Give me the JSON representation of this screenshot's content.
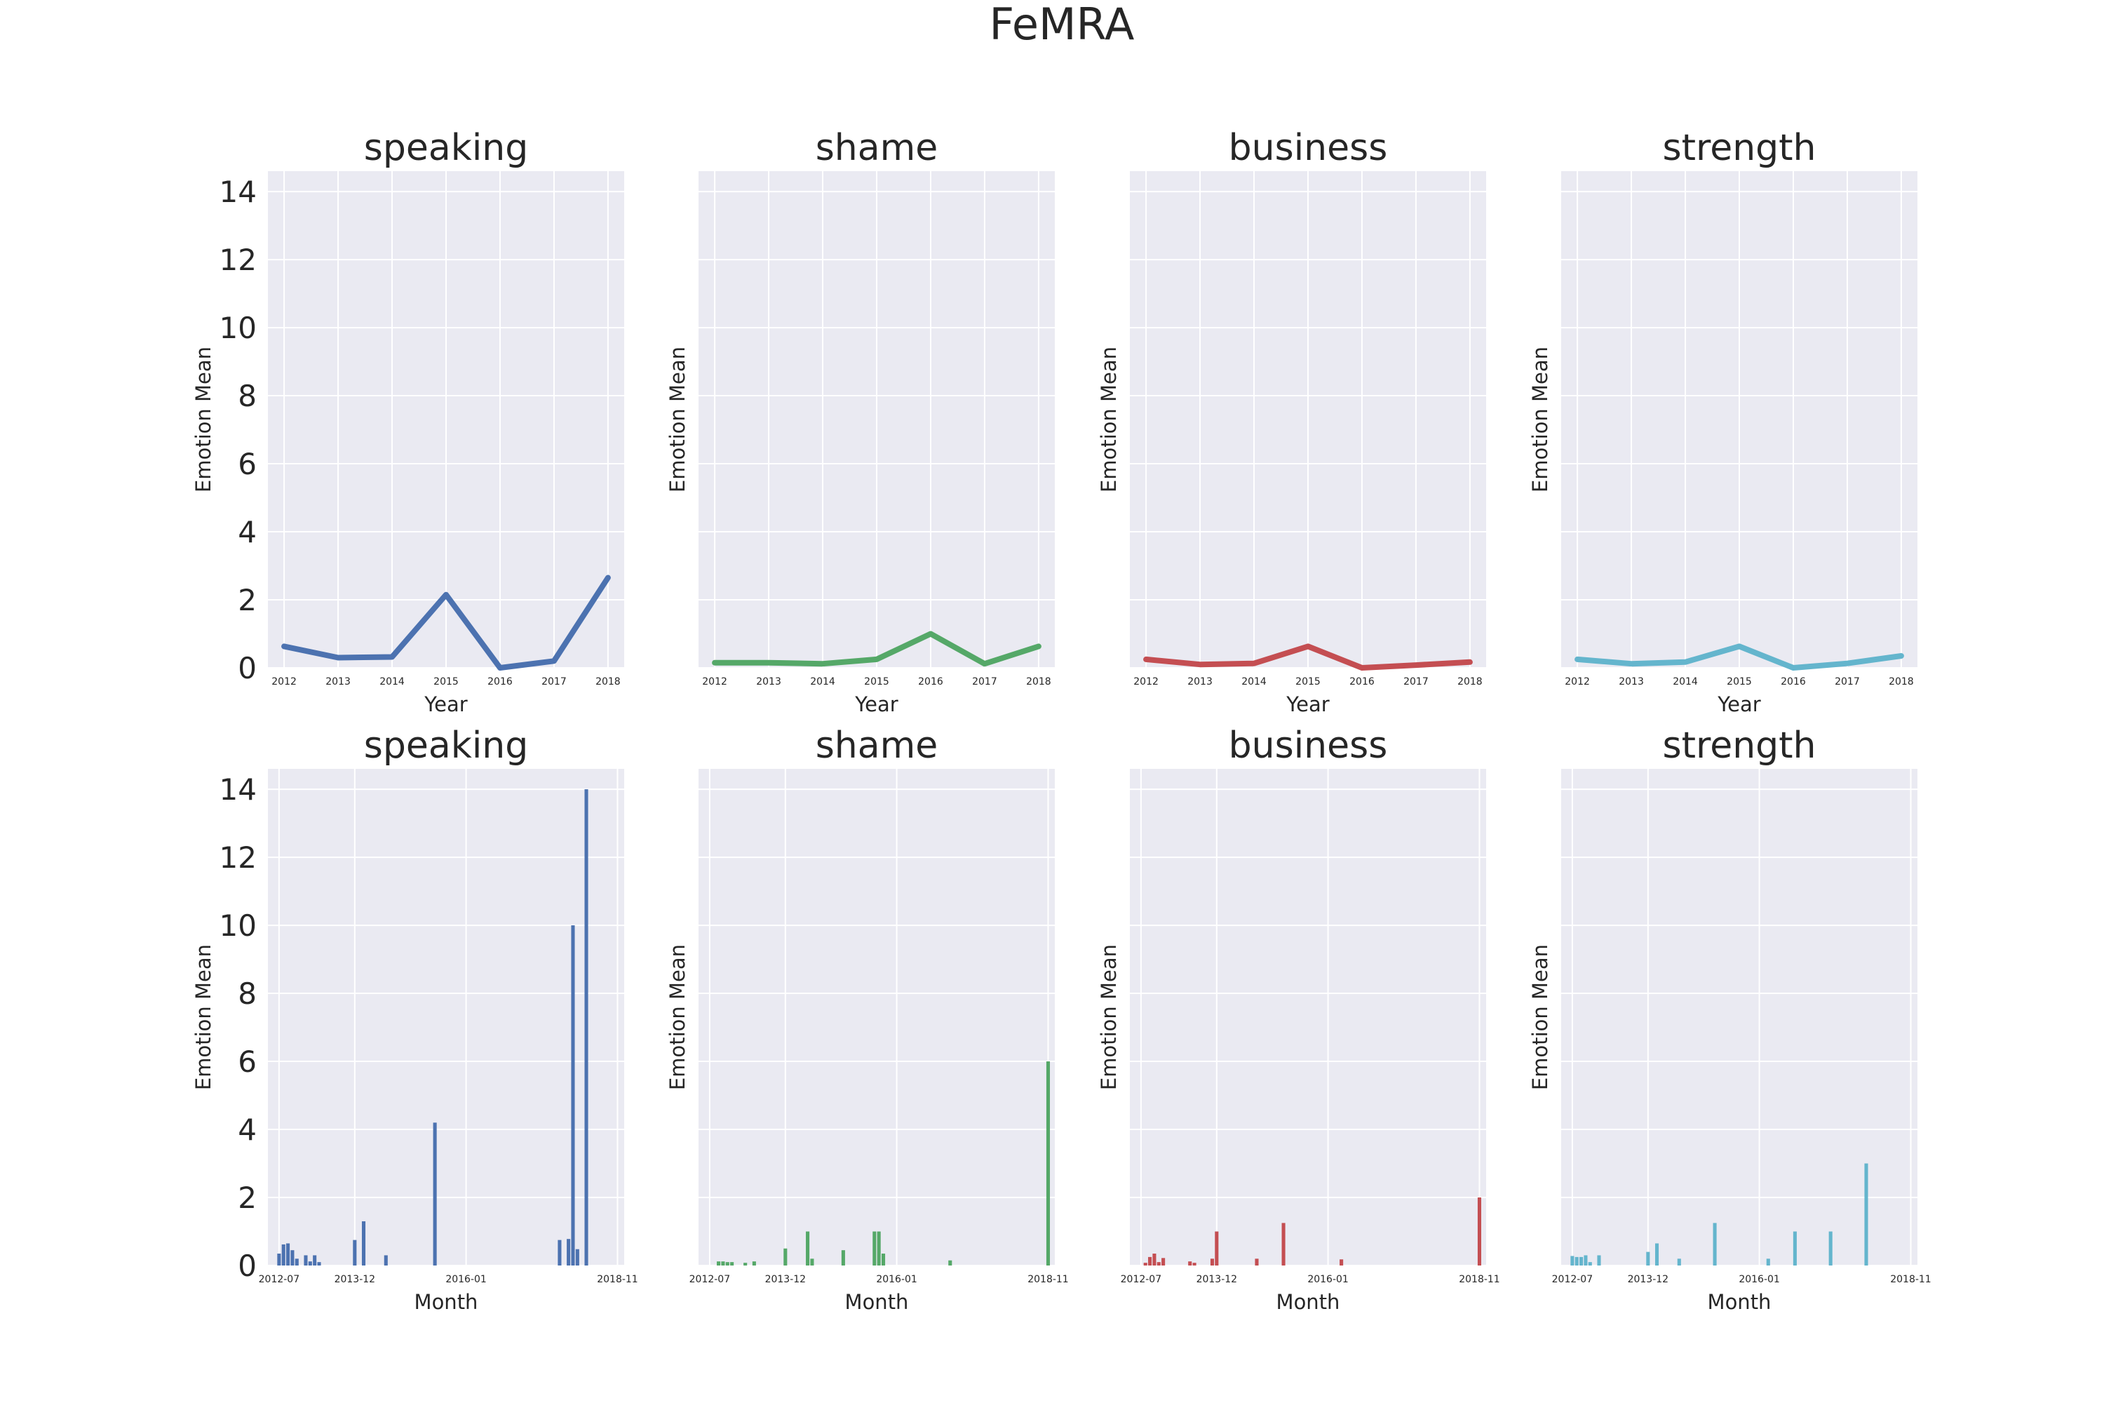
{
  "figure": {
    "suptitle": "FeMRA"
  },
  "style": {
    "panel_bg": "#eaeaf2",
    "grid_color": "#ffffff",
    "text_color": "#262626",
    "series_colors": [
      "#4c72b0",
      "#55a868",
      "#c44e52",
      "#64b5cd"
    ]
  },
  "chart_data": [
    {
      "type": "line",
      "title": "speaking",
      "xlabel": "Year",
      "ylabel": "Emotion Mean",
      "x": [
        "2012",
        "2013",
        "2014",
        "2015",
        "2016",
        "2017",
        "2018"
      ],
      "values": [
        0.63,
        0.3,
        0.32,
        2.15,
        0.0,
        0.2,
        2.65
      ],
      "ylim": [
        0,
        14.6
      ]
    },
    {
      "type": "line",
      "title": "shame",
      "xlabel": "Year",
      "ylabel": "Emotion Mean",
      "x": [
        "2012",
        "2013",
        "2014",
        "2015",
        "2016",
        "2017",
        "2018"
      ],
      "values": [
        0.15,
        0.15,
        0.12,
        0.25,
        1.0,
        0.12,
        0.63
      ],
      "ylim": [
        0,
        14.6
      ]
    },
    {
      "type": "line",
      "title": "business",
      "xlabel": "Year",
      "ylabel": "Emotion Mean",
      "x": [
        "2012",
        "2013",
        "2014",
        "2015",
        "2016",
        "2017",
        "2018"
      ],
      "values": [
        0.25,
        0.1,
        0.13,
        0.63,
        0.0,
        0.08,
        0.17
      ],
      "ylim": [
        0,
        14.6
      ]
    },
    {
      "type": "line",
      "title": "strength",
      "xlabel": "Year",
      "ylabel": "Emotion Mean",
      "x": [
        "2012",
        "2013",
        "2014",
        "2015",
        "2016",
        "2017",
        "2018"
      ],
      "values": [
        0.25,
        0.12,
        0.17,
        0.63,
        0.0,
        0.13,
        0.35
      ],
      "ylim": [
        0,
        14.6
      ]
    },
    {
      "type": "bar",
      "title": "speaking",
      "xlabel": "Month",
      "ylabel": "Emotion Mean",
      "xticklabels": [
        "2012-07",
        "2013-12",
        "2016-01",
        "2018-11"
      ],
      "bars": [
        {
          "x": "2012-07",
          "value": 0.35
        },
        {
          "x": "2012-08",
          "value": 0.62
        },
        {
          "x": "2012-09",
          "value": 0.65
        },
        {
          "x": "2012-10",
          "value": 0.45
        },
        {
          "x": "2012-11",
          "value": 0.2
        },
        {
          "x": "2013-01",
          "value": 0.3
        },
        {
          "x": "2013-02",
          "value": 0.12
        },
        {
          "x": "2013-03",
          "value": 0.3
        },
        {
          "x": "2013-04",
          "value": 0.1
        },
        {
          "x": "2013-12",
          "value": 0.75
        },
        {
          "x": "2014-02",
          "value": 1.3
        },
        {
          "x": "2014-07",
          "value": 0.3
        },
        {
          "x": "2015-06",
          "value": 4.2
        },
        {
          "x": "2017-10",
          "value": 0.75
        },
        {
          "x": "2017-12",
          "value": 0.78
        },
        {
          "x": "2018-01",
          "value": 10.0
        },
        {
          "x": "2018-02",
          "value": 0.48
        },
        {
          "x": "2018-04",
          "value": 14.0
        }
      ],
      "ylim": [
        0,
        14.6
      ]
    },
    {
      "type": "bar",
      "title": "shame",
      "xlabel": "Month",
      "ylabel": "Emotion Mean",
      "xticklabels": [
        "2012-07",
        "2013-12",
        "2016-01",
        "2018-11"
      ],
      "bars": [
        {
          "x": "2012-09",
          "value": 0.12
        },
        {
          "x": "2012-10",
          "value": 0.12
        },
        {
          "x": "2012-11",
          "value": 0.1
        },
        {
          "x": "2012-12",
          "value": 0.1
        },
        {
          "x": "2013-03",
          "value": 0.08
        },
        {
          "x": "2013-05",
          "value": 0.12
        },
        {
          "x": "2013-12",
          "value": 0.5
        },
        {
          "x": "2014-05",
          "value": 1.0
        },
        {
          "x": "2014-06",
          "value": 0.2
        },
        {
          "x": "2015-01",
          "value": 0.45
        },
        {
          "x": "2015-08",
          "value": 1.0
        },
        {
          "x": "2015-09",
          "value": 1.0
        },
        {
          "x": "2015-10",
          "value": 0.35
        },
        {
          "x": "2017-01",
          "value": 0.15
        },
        {
          "x": "2018-11",
          "value": 6.0
        }
      ],
      "ylim": [
        0,
        14.6
      ]
    },
    {
      "type": "bar",
      "title": "business",
      "xlabel": "Month",
      "ylabel": "Emotion Mean",
      "xticklabels": [
        "2012-07",
        "2013-12",
        "2016-01",
        "2018-11"
      ],
      "bars": [
        {
          "x": "2012-08",
          "value": 0.08
        },
        {
          "x": "2012-09",
          "value": 0.25
        },
        {
          "x": "2012-10",
          "value": 0.35
        },
        {
          "x": "2012-11",
          "value": 0.1
        },
        {
          "x": "2012-12",
          "value": 0.22
        },
        {
          "x": "2013-06",
          "value": 0.12
        },
        {
          "x": "2013-07",
          "value": 0.08
        },
        {
          "x": "2013-11",
          "value": 0.2
        },
        {
          "x": "2013-12",
          "value": 1.0
        },
        {
          "x": "2014-09",
          "value": 0.2
        },
        {
          "x": "2015-03",
          "value": 1.25
        },
        {
          "x": "2016-04",
          "value": 0.18
        },
        {
          "x": "2018-11",
          "value": 2.0
        }
      ],
      "ylim": [
        0,
        14.6
      ]
    },
    {
      "type": "bar",
      "title": "strength",
      "xlabel": "Month",
      "ylabel": "Emotion Mean",
      "xticklabels": [
        "2012-07",
        "2013-12",
        "2016-01",
        "2018-11"
      ],
      "bars": [
        {
          "x": "2012-07",
          "value": 0.28
        },
        {
          "x": "2012-08",
          "value": 0.25
        },
        {
          "x": "2012-09",
          "value": 0.25
        },
        {
          "x": "2012-10",
          "value": 0.3
        },
        {
          "x": "2012-11",
          "value": 0.1
        },
        {
          "x": "2013-01",
          "value": 0.3
        },
        {
          "x": "2013-12",
          "value": 0.4
        },
        {
          "x": "2014-02",
          "value": 0.65
        },
        {
          "x": "2014-07",
          "value": 0.2
        },
        {
          "x": "2015-03",
          "value": 1.25
        },
        {
          "x": "2016-03",
          "value": 0.2
        },
        {
          "x": "2016-09",
          "value": 1.0
        },
        {
          "x": "2017-05",
          "value": 1.0
        },
        {
          "x": "2018-01",
          "value": 3.0
        }
      ],
      "ylim": [
        0,
        14.6
      ]
    }
  ]
}
